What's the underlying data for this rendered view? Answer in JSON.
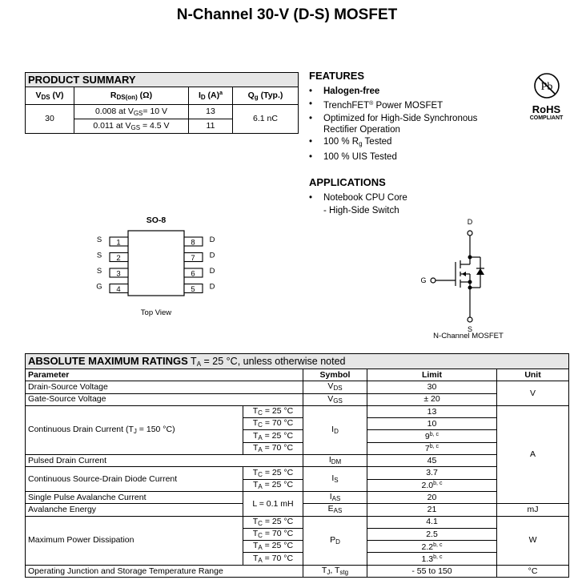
{
  "title": "N-Channel 30-V (D-S) MOSFET",
  "product_summary": {
    "title": "PRODUCT SUMMARY",
    "headers": {
      "vds": {
        "main": "V",
        "sub": "DS",
        "after": " (V)"
      },
      "rds": {
        "main": "R",
        "sub": "DS(on)",
        "after": " (Ω)"
      },
      "id": {
        "main": "I",
        "sub": "D",
        "after": " (A)",
        "sup": "a"
      },
      "qg": {
        "main": "Q",
        "sub": "g",
        "after": " (Typ.)"
      }
    },
    "vds": "30",
    "qg": "6.1 nC",
    "rows": [
      {
        "rds_pre": "0.008 at V",
        "rds_sub": "GS",
        "rds_post": "= 10 V",
        "id": "13"
      },
      {
        "rds_pre": "0.011 at V",
        "rds_sub": "GS",
        "rds_post": " = 4.5 V",
        "id": "11"
      }
    ]
  },
  "features": {
    "title": "FEATURES",
    "bullet": "•",
    "items": [
      {
        "text": "Halogen-free"
      },
      {
        "text": "TrenchFET",
        "sup": "®",
        "after": " Power MOSFET"
      },
      {
        "text": "Optimized for High-Side Synchronous Rectifier Operation"
      },
      {
        "text": "100 % R",
        "sub": "g",
        "after": " Tested"
      },
      {
        "text": "100 % UIS Tested"
      }
    ]
  },
  "applications": {
    "title": "APPLICATIONS",
    "items": [
      "Notebook CPU Core",
      "- High-Side Switch"
    ]
  },
  "rohs": {
    "logo_text": "Pb",
    "label": "RoHS",
    "sublabel": "COMPLIANT"
  },
  "package": {
    "name": "SO-8",
    "caption": "Top View",
    "left_pins": [
      {
        "num": "1",
        "name": "S"
      },
      {
        "num": "2",
        "name": "S"
      },
      {
        "num": "3",
        "name": "S"
      },
      {
        "num": "4",
        "name": "G"
      }
    ],
    "right_pins": [
      {
        "num": "8",
        "name": "D"
      },
      {
        "num": "7",
        "name": "D"
      },
      {
        "num": "6",
        "name": "D"
      },
      {
        "num": "5",
        "name": "D"
      }
    ]
  },
  "schematic": {
    "drain": "D",
    "gate": "G",
    "source": "S",
    "caption": "N-Channel MOSFET"
  },
  "amr": {
    "title_bold": "ABSOLUTE MAXIMUM RATINGS",
    "title_t": " T",
    "title_sub": "A",
    "title_rest": " = 25 °C, unless otherwise noted",
    "headers": {
      "parameter": "Parameter",
      "symbol": "Symbol",
      "limit": "Limit",
      "unit": "Unit"
    },
    "groups": [
      {
        "param": "Drain-Source Voltage",
        "sym": [
          [
            "V",
            "DS"
          ]
        ],
        "unit": "V",
        "lines": [
          {
            "limit": "30"
          }
        ]
      },
      {
        "param": "Gate-Source Voltage",
        "sym": [
          [
            "V",
            "GS"
          ]
        ],
        "lines": [
          {
            "limit": "± 20"
          }
        ]
      },
      {
        "param": "Continuous Drain Current (T",
        "param_sub": "J",
        "param_after": " = 150 °C)",
        "sym": [
          [
            "I",
            "D"
          ]
        ],
        "unit": "A",
        "lines": [
          {
            "cond": [
              "T",
              "C",
              " = 25 °C"
            ],
            "limit": "13"
          },
          {
            "cond": [
              "T",
              "C",
              " = 70 °C"
            ],
            "limit": "10"
          },
          {
            "cond": [
              "T",
              "A",
              " = 25 °C"
            ],
            "limit": "9",
            "sup": "b, c"
          },
          {
            "cond": [
              "T",
              "A",
              " = 70 °C"
            ],
            "limit": "7",
            "sup": "b, c"
          }
        ]
      },
      {
        "param": "Pulsed Drain Current",
        "sym": [
          [
            "I",
            "DM"
          ]
        ],
        "lines": [
          {
            "limit": "45"
          }
        ]
      },
      {
        "param": "Continuous Source-Drain Diode Current",
        "sym": [
          [
            "I",
            "S"
          ]
        ],
        "lines": [
          {
            "cond": [
              "T",
              "C",
              " = 25 °C"
            ],
            "limit": "3.7"
          },
          {
            "cond": [
              "T",
              "A",
              " = 25 °C"
            ],
            "limit": "2.0",
            "sup": "b, c"
          }
        ]
      },
      {
        "param": "Single Pulse Avalanche Current",
        "shared_cond": "L = 0.1 mH",
        "sym": [
          [
            "I",
            "AS"
          ]
        ],
        "lines": [
          {
            "limit": "20"
          }
        ]
      },
      {
        "param": "Avalanche Energy",
        "sym": [
          [
            "E",
            "AS"
          ]
        ],
        "unit": "mJ",
        "lines": [
          {
            "limit": "21"
          }
        ]
      },
      {
        "param": "Maximum Power Dissipation",
        "sym": [
          [
            "P",
            "D"
          ]
        ],
        "unit": "W",
        "lines": [
          {
            "cond": [
              "T",
              "C",
              " = 25 °C"
            ],
            "limit": "4.1"
          },
          {
            "cond": [
              "T",
              "C",
              " = 70 °C"
            ],
            "limit": "2.5"
          },
          {
            "cond": [
              "T",
              "A",
              " = 25 °C"
            ],
            "limit": "2.2",
            "sup": "b, c"
          },
          {
            "cond": [
              "T",
              "A",
              " = 70 °C"
            ],
            "limit": "1.3",
            "sup": "b, c"
          }
        ]
      },
      {
        "param": "Operating Junction and Storage Temperature Range",
        "sym": [
          [
            "T",
            "J"
          ],
          [
            ", T",
            "stg"
          ]
        ],
        "unit": "°C",
        "lines": [
          {
            "limit": "- 55 to 150"
          }
        ]
      }
    ]
  }
}
